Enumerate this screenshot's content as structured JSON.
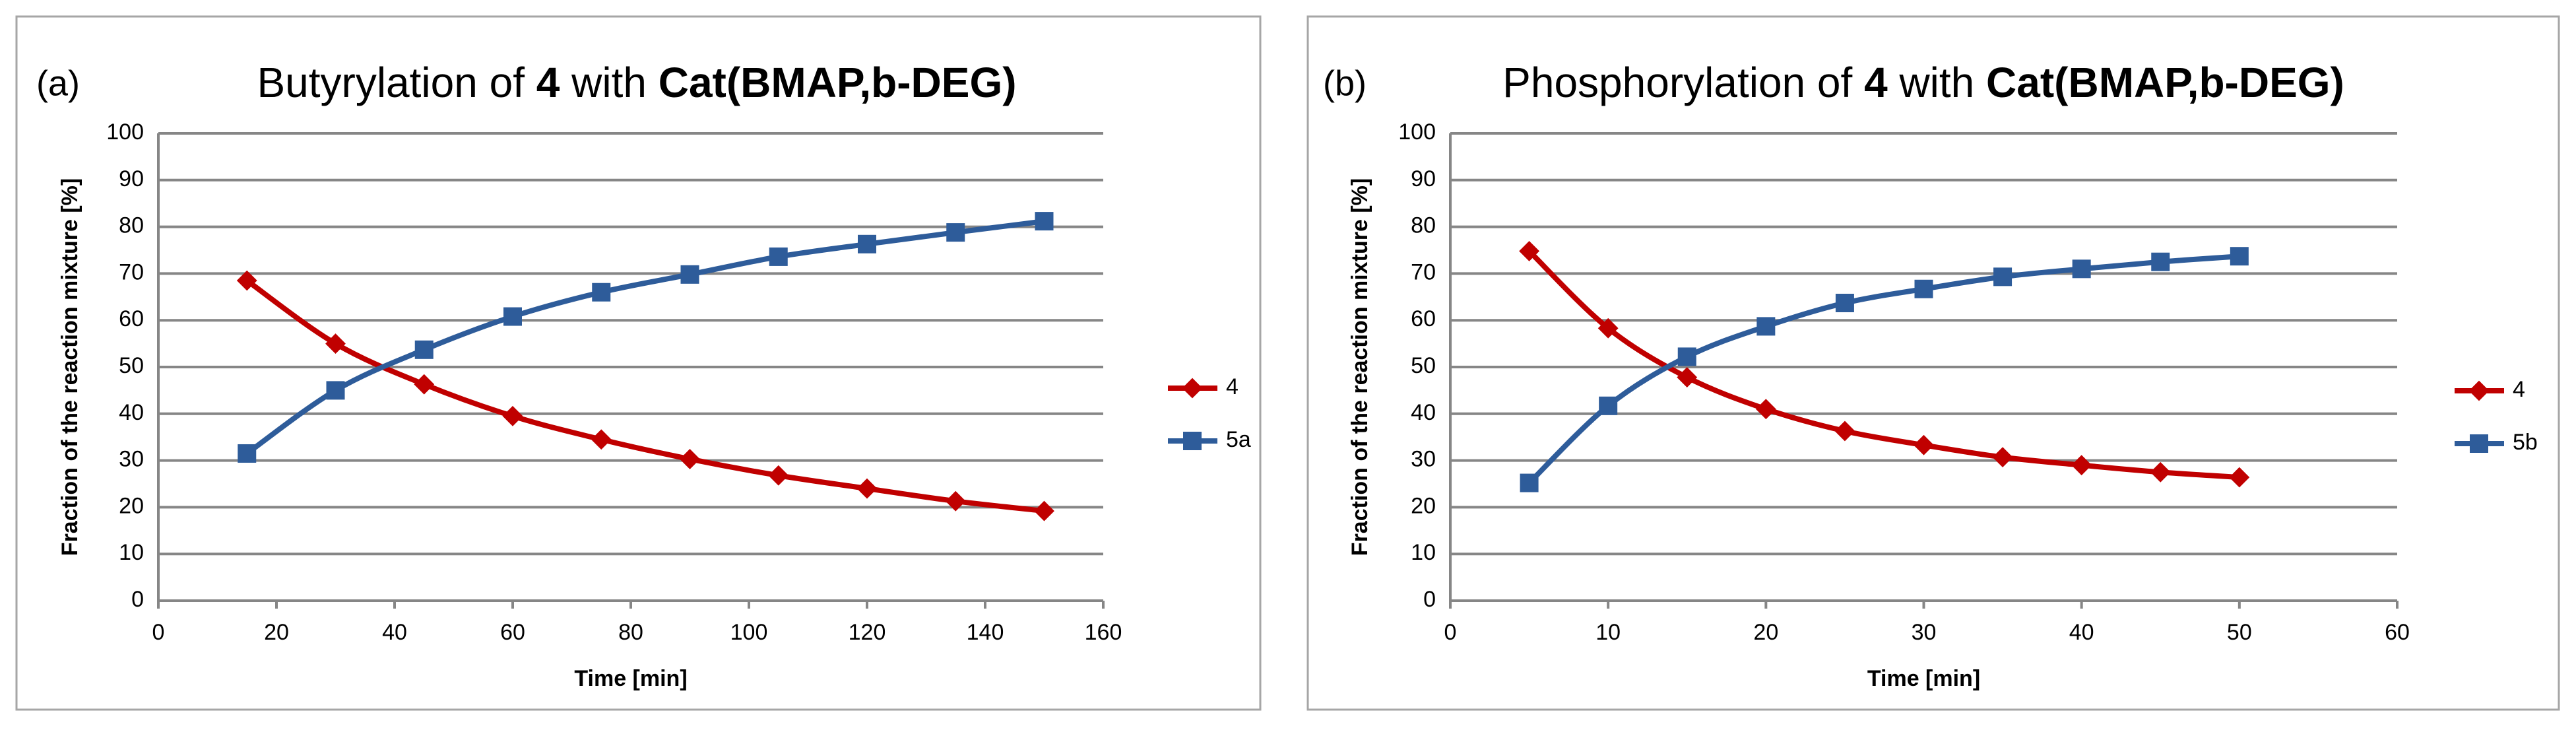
{
  "chart_data": [
    {
      "type": "line",
      "panel_label": "(a)",
      "title_parts": [
        "Butyrylation",
        "of",
        "4",
        "with",
        "Cat(BMAP,b-DEG)"
      ],
      "xlabel": "Time [min]",
      "ylabel": "Fraction of the reaction mixture [%]",
      "xlim": [
        0,
        160
      ],
      "ylim": [
        0,
        100
      ],
      "xticks": [
        0,
        20,
        40,
        60,
        80,
        100,
        120,
        140,
        160
      ],
      "yticks": [
        0,
        10,
        20,
        30,
        40,
        50,
        60,
        70,
        80,
        90,
        100
      ],
      "grid": true,
      "legend_position": "right",
      "series": [
        {
          "name": "4",
          "color": "#c00000",
          "marker": "diamond",
          "x": [
            15,
            30,
            45,
            60,
            75,
            90,
            105,
            120,
            135,
            150
          ],
          "y": [
            68.5,
            55,
            46.3,
            39.5,
            34.5,
            30.3,
            26.8,
            24,
            21.3,
            19.2
          ]
        },
        {
          "name": "5a",
          "color": "#2e5c9a",
          "marker": "square",
          "x": [
            15,
            30,
            45,
            60,
            75,
            90,
            105,
            120,
            135,
            150
          ],
          "y": [
            31.5,
            45,
            53.7,
            60.8,
            66,
            69.8,
            73.6,
            76.3,
            78.8,
            81.2
          ]
        }
      ]
    },
    {
      "type": "line",
      "panel_label": "(b)",
      "title_parts": [
        "Phosphorylation",
        "of",
        "4",
        "with",
        "Cat(BMAP,b-DEG)"
      ],
      "xlabel": "Time [min]",
      "ylabel": "Fraction of the reaction mixture [%]",
      "xlim": [
        0,
        60
      ],
      "ylim": [
        0,
        100
      ],
      "xticks": [
        0,
        10,
        20,
        30,
        40,
        50,
        60
      ],
      "yticks": [
        0,
        10,
        20,
        30,
        40,
        50,
        60,
        70,
        80,
        90,
        100
      ],
      "grid": true,
      "legend_position": "right",
      "series": [
        {
          "name": "4",
          "color": "#c00000",
          "marker": "diamond",
          "x": [
            5,
            10,
            15,
            20,
            25,
            30,
            35,
            40,
            45,
            50
          ],
          "y": [
            74.8,
            58.3,
            47.8,
            41,
            36.3,
            33.3,
            30.7,
            29,
            27.5,
            26.4
          ]
        },
        {
          "name": "5b",
          "color": "#2e5c9a",
          "marker": "square",
          "x": [
            5,
            10,
            15,
            20,
            25,
            30,
            35,
            40,
            45,
            50
          ],
          "y": [
            25.2,
            41.7,
            52.2,
            58.7,
            63.7,
            66.7,
            69.3,
            71,
            72.5,
            73.7
          ]
        }
      ]
    }
  ]
}
